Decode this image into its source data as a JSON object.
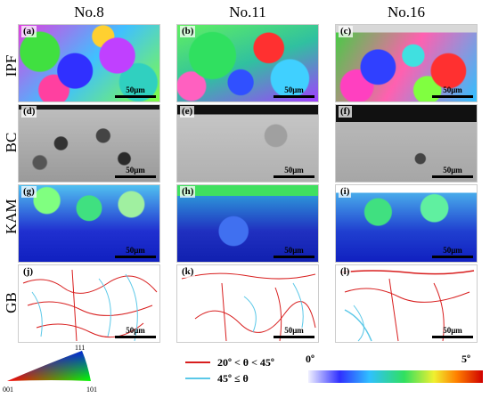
{
  "columns": [
    "No.8",
    "No.11",
    "No.16"
  ],
  "rows": [
    "IPF",
    "BC",
    "KAM",
    "GB"
  ],
  "panel_tags": [
    [
      "(a)",
      "(b)",
      "(c)"
    ],
    [
      "(d)",
      "(e)",
      "(f)"
    ],
    [
      "(g)",
      "(h)",
      "(i)"
    ],
    [
      "(j)",
      "(k)",
      "(l)"
    ]
  ],
  "scale_bar_label": "50μm",
  "ipf_legend": {
    "top": "111",
    "left": "001",
    "right": "101"
  },
  "gb_legend": {
    "items": [
      {
        "label": "20º < θ < 45º",
        "color": "#d81e1e"
      },
      {
        "label": "45º ≤ θ",
        "color": "#5bc8e8"
      }
    ]
  },
  "kam_scale": {
    "min": "0º",
    "max": "5º"
  }
}
